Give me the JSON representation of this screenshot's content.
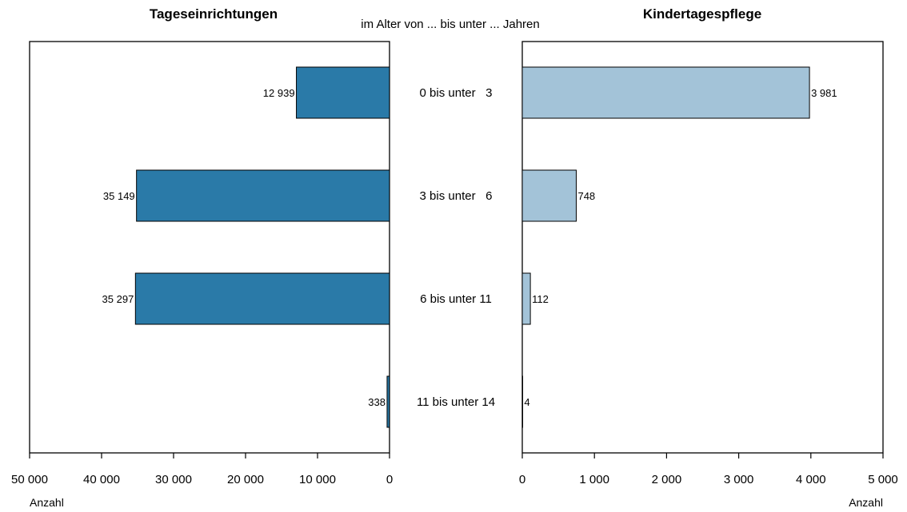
{
  "chart_data": [
    {
      "type": "bar",
      "orientation": "horizontal",
      "direction": "right-to-left",
      "title": "Tageseinrichtungen",
      "categories": [
        "0 bis unter   3",
        "3 bis unter   6",
        "6 bis unter 11",
        "11 bis unter 14"
      ],
      "values": [
        12939,
        35149,
        35297,
        338
      ],
      "value_labels": [
        "12 939",
        "35 149",
        "35 297",
        "338"
      ],
      "xlabel": "Anzahl",
      "xlim": [
        0,
        50000
      ],
      "ticks": [
        50000,
        40000,
        30000,
        20000,
        10000,
        0
      ],
      "tick_labels": [
        "50 000",
        "40 000",
        "30 000",
        "20 000",
        "10 000",
        "0"
      ],
      "color": "#2a7aa8"
    },
    {
      "type": "bar",
      "orientation": "horizontal",
      "direction": "left-to-right",
      "title": "Kindertagespflege",
      "categories": [
        "0 bis unter   3",
        "3 bis unter   6",
        "6 bis unter 11",
        "11 bis unter 14"
      ],
      "values": [
        3981,
        748,
        112,
        4
      ],
      "value_labels": [
        "3 981",
        "748",
        "112",
        "4"
      ],
      "xlabel": "Anzahl",
      "xlim": [
        0,
        5000
      ],
      "ticks": [
        0,
        1000,
        2000,
        3000,
        4000,
        5000
      ],
      "tick_labels": [
        "0",
        "1 000",
        "2 000",
        "3 000",
        "4 000",
        "5 000"
      ],
      "color": "#a3c3d8"
    }
  ],
  "category_header": "im Alter von ... bis unter ... Jahren"
}
